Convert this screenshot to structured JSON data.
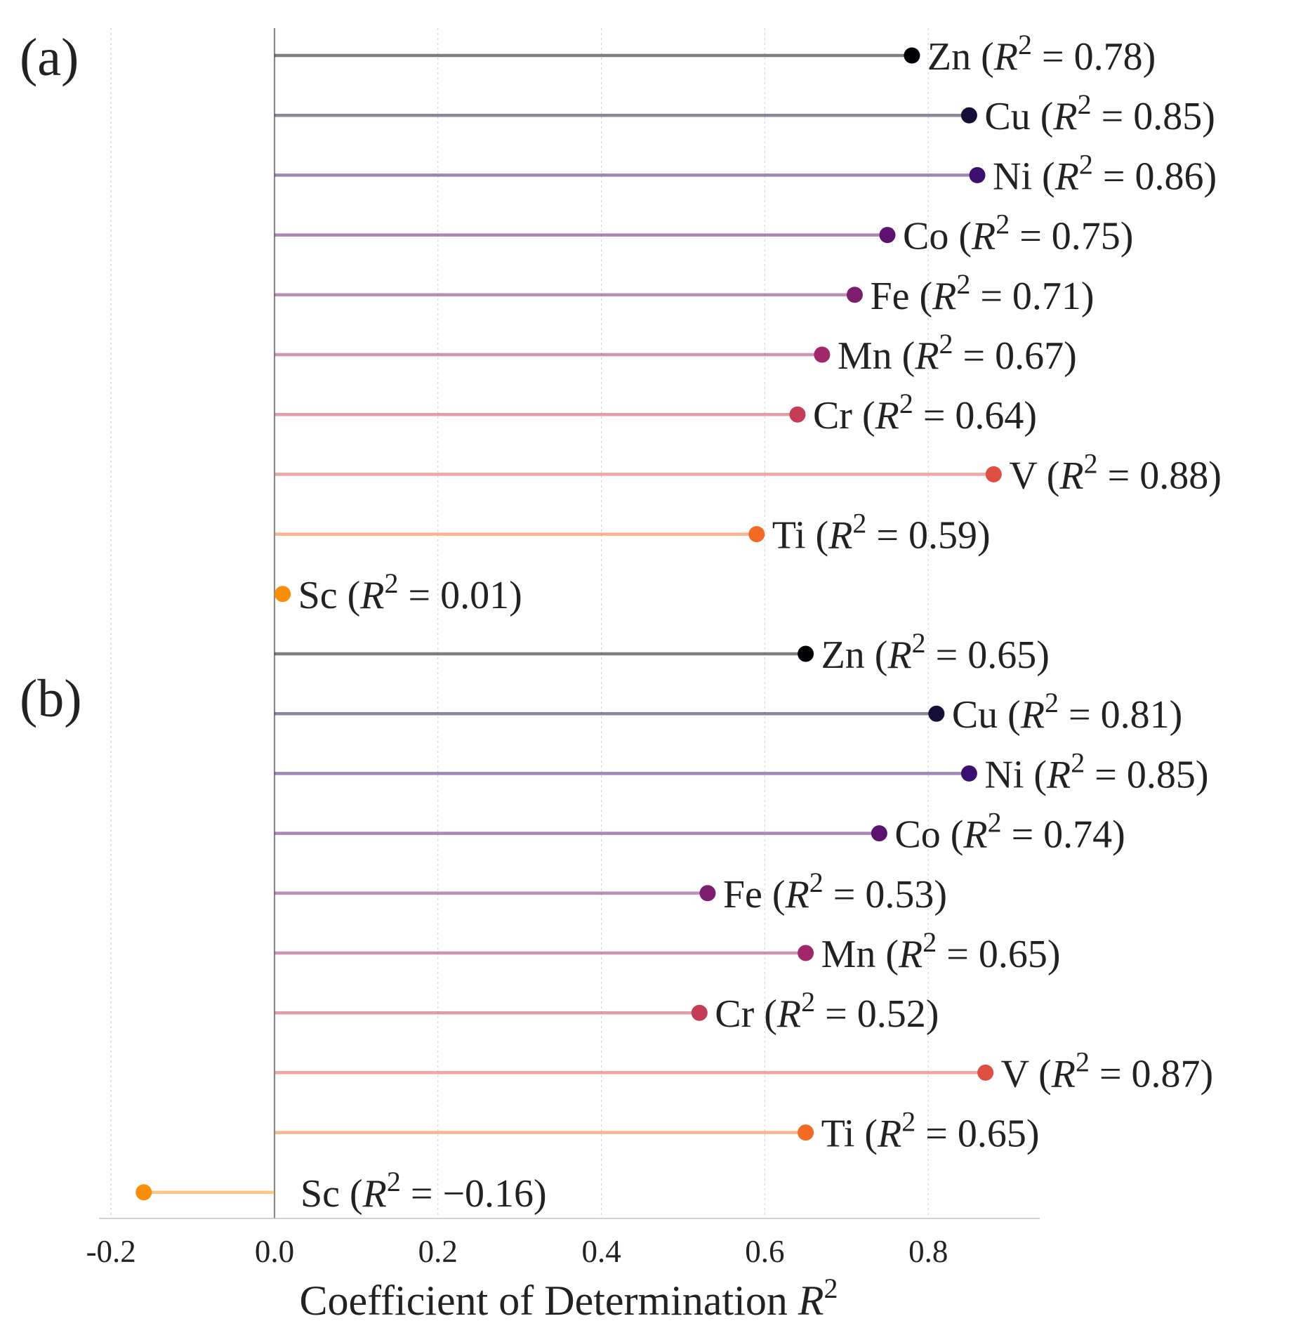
{
  "chart_data": {
    "type": "lollipop",
    "orientation": "horizontal",
    "xlabel": "Coefficient of Determination",
    "xlabel_symbol": "R",
    "xlabel_superscript": "2",
    "xlim": [
      -0.22,
      0.93
    ],
    "xticks": [
      -0.2,
      0.0,
      0.2,
      0.4,
      0.6,
      0.8
    ],
    "xtick_labels": [
      "-0.2",
      "0.0",
      "0.2",
      "0.4",
      "0.6",
      "0.8"
    ],
    "grid": "vertical dotted",
    "label_template": {
      "open": " (",
      "symbol": "R",
      "sup": "2",
      "eq": " = ",
      "close": ")"
    },
    "panels": [
      {
        "label": "(a)",
        "points": [
          {
            "element": "Zn",
            "value": 0.78,
            "value_text": "0.78",
            "color": "#000004"
          },
          {
            "element": "Cu",
            "value": 0.85,
            "value_text": "0.85",
            "color": "#150e37"
          },
          {
            "element": "Ni",
            "value": 0.86,
            "value_text": "0.86",
            "color": "#3b0f70"
          },
          {
            "element": "Co",
            "value": 0.75,
            "value_text": "0.75",
            "color": "#5c126e"
          },
          {
            "element": "Fe",
            "value": 0.71,
            "value_text": "0.71",
            "color": "#7e1e6e"
          },
          {
            "element": "Mn",
            "value": 0.67,
            "value_text": "0.67",
            "color": "#a0286a"
          },
          {
            "element": "Cr",
            "value": 0.64,
            "value_text": "0.64",
            "color": "#c43c56"
          },
          {
            "element": "V",
            "value": 0.88,
            "value_text": "0.88",
            "color": "#de4f43"
          },
          {
            "element": "Ti",
            "value": 0.59,
            "value_text": "0.59",
            "color": "#f26b25"
          },
          {
            "element": "Sc",
            "value": 0.01,
            "value_text": "0.01",
            "color": "#f98e09"
          }
        ]
      },
      {
        "label": "(b)",
        "points": [
          {
            "element": "Zn",
            "value": 0.65,
            "value_text": "0.65",
            "color": "#000004"
          },
          {
            "element": "Cu",
            "value": 0.81,
            "value_text": "0.81",
            "color": "#150e37"
          },
          {
            "element": "Ni",
            "value": 0.85,
            "value_text": "0.85",
            "color": "#3b0f70"
          },
          {
            "element": "Co",
            "value": 0.74,
            "value_text": "0.74",
            "color": "#5c126e"
          },
          {
            "element": "Fe",
            "value": 0.53,
            "value_text": "0.53",
            "color": "#7e1e6e"
          },
          {
            "element": "Mn",
            "value": 0.65,
            "value_text": "0.65",
            "color": "#a0286a"
          },
          {
            "element": "Cr",
            "value": 0.52,
            "value_text": "0.52",
            "color": "#c43c56"
          },
          {
            "element": "V",
            "value": 0.87,
            "value_text": "0.87",
            "color": "#de4f43"
          },
          {
            "element": "Ti",
            "value": 0.65,
            "value_text": "0.65",
            "color": "#f26b25"
          },
          {
            "element": "Sc",
            "value": -0.16,
            "value_text": "−0.16",
            "color": "#f98e09"
          }
        ]
      }
    ]
  }
}
